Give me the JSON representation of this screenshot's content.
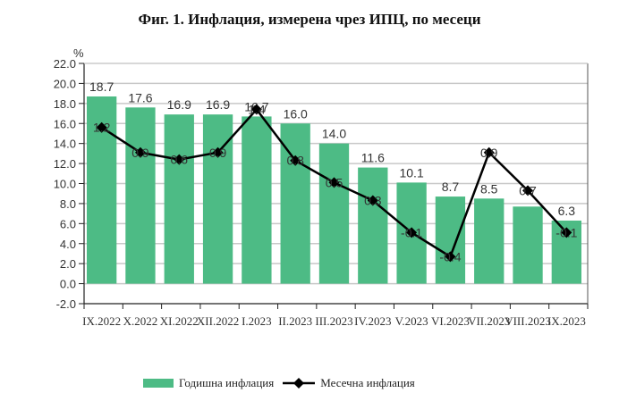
{
  "title": "Фиг. 1. Инфлация, измерена чрез ИПЦ, по месеци",
  "chart_data": {
    "type": "bar+line",
    "title": "Фиг. 1. Инфлация, измерена чрез ИПЦ, по месеци",
    "ylabel": "%",
    "xlabel": "",
    "ylim": [
      -2.0,
      22.0
    ],
    "yticks": [
      "22.0",
      "20.0",
      "18.0",
      "16.0",
      "14.0",
      "12.0",
      "10.0",
      "8.0",
      "6.0",
      "4.0",
      "2.0",
      "0.0",
      "-2.0"
    ],
    "grid": true,
    "legend_position": "bottom",
    "categories": [
      "IX.2022",
      "X.2022",
      "XI.2022",
      "XII.2022",
      "I.2023",
      "II.2023",
      "III.2023",
      "IV.2023",
      "V.2023",
      "VI.2023",
      "VII.2023",
      "VIII.2023",
      "IX.2023"
    ],
    "series": [
      {
        "name": "Годишна инфлация",
        "type": "bar",
        "color": "#4dbb85",
        "values": [
          18.7,
          17.6,
          16.9,
          16.9,
          16.7,
          16.0,
          14.0,
          11.6,
          10.1,
          8.7,
          8.5,
          7.7,
          6.3
        ],
        "labels": [
          "18.7",
          "17.6",
          "16.9",
          "16.9",
          "16.7",
          "16.0",
          "14.0",
          "11.6",
          "10.1",
          "8.7",
          "8.5",
          "",
          "6.3"
        ]
      },
      {
        "name": "Месечна инфлация",
        "type": "line",
        "color": "#000000",
        "marker": "diamond",
        "values": [
          1.2,
          0.9,
          0.6,
          0.9,
          1.4,
          0.8,
          0.5,
          0.3,
          -0.1,
          -0.4,
          0.9,
          0.7,
          -0.1
        ],
        "labels": [
          "1.2",
          "0.9",
          "0.6",
          "0.9",
          "1.4",
          "0.8",
          "0.5",
          "0.3",
          "-0.1",
          "-0.4",
          "0.9",
          "0.7",
          "-0.1"
        ],
        "plot_y": [
          15.6,
          13.1,
          12.4,
          13.1,
          17.4,
          12.3,
          10.1,
          8.3,
          5.1,
          2.7,
          13.1,
          9.3,
          5.1
        ]
      }
    ]
  },
  "legend": {
    "bar_label": "Годишна инфлация",
    "line_label": "Месечна инфлация"
  }
}
